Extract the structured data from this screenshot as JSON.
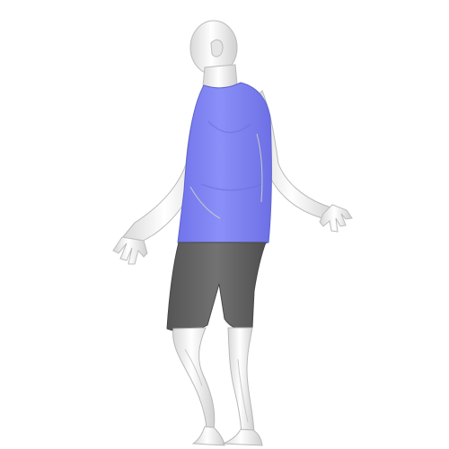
{
  "scene": {
    "background_color": "#ffffff",
    "skin_color": "#f1f1f1",
    "top_color": "#7f84f5",
    "shorts_color": "#6f6f6f"
  }
}
